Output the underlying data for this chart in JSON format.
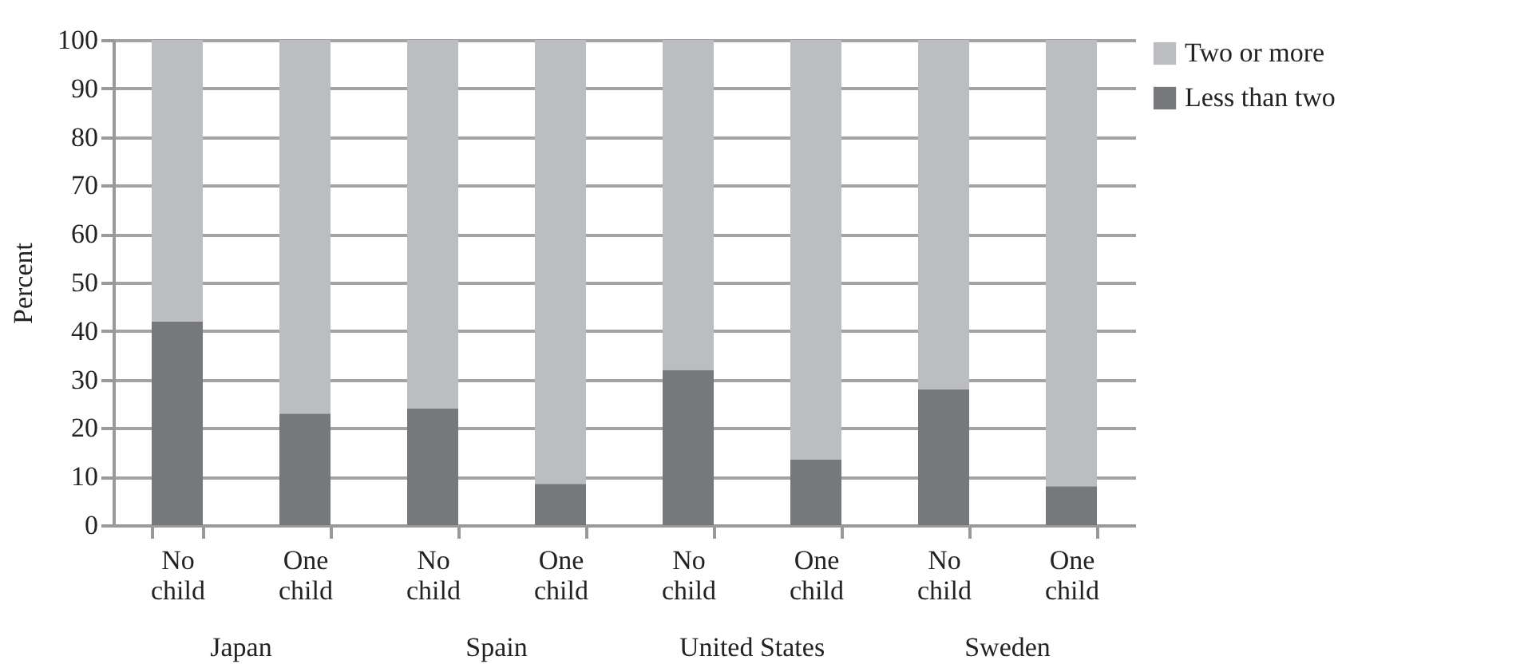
{
  "chart_data": {
    "type": "bar",
    "stacked": true,
    "ylabel": "Percent",
    "categories": [
      "No child",
      "One child",
      "No child",
      "One child",
      "No child",
      "One child",
      "No child",
      "One child"
    ],
    "series": [
      {
        "name": "Less than two",
        "color": "#77787b",
        "values": [
          42,
          23,
          24,
          8.5,
          32,
          13.5,
          28,
          8
        ]
      },
      {
        "name": "Two or more",
        "color": "#bcbdc0",
        "values": [
          58,
          77,
          76,
          91.5,
          68,
          86.5,
          72,
          92
        ]
      }
    ],
    "annotations": [
      "Japan",
      "Spain",
      "United States",
      "Sweden"
    ],
    "ylim": [
      0,
      100
    ],
    "yticks": [
      0,
      10,
      20,
      30,
      40,
      50,
      60,
      70,
      80,
      90,
      100
    ],
    "grid": "y",
    "legend": "right"
  }
}
